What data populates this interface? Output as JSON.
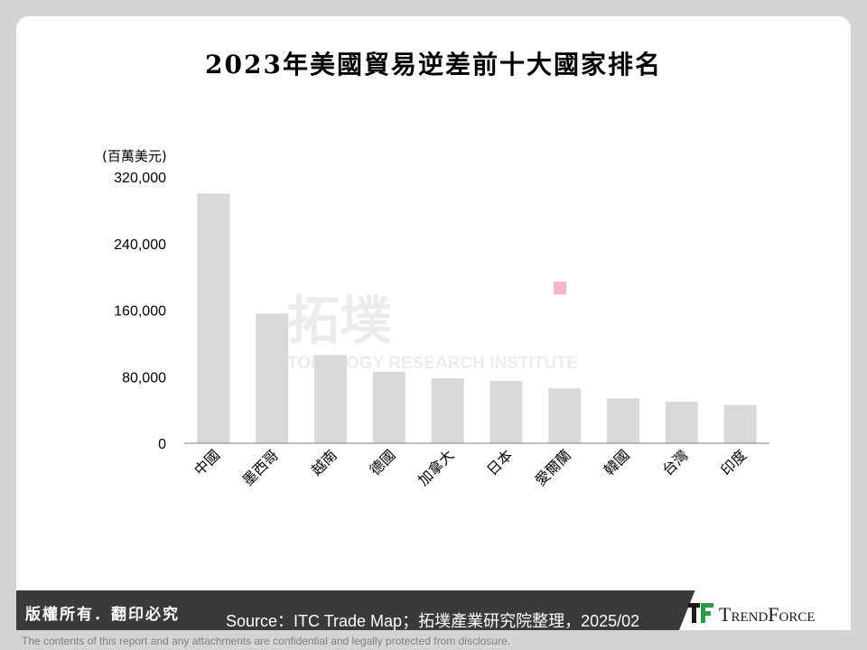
{
  "footer": {
    "rights": "版權所有．翻印必究",
    "source": "Source：ITC Trade Map；拓墣產業研究院整理，2025/02",
    "brand": "TrendForce",
    "disclaimer": "The contents of this report and any attachments are confidential and legally protected from disclosure."
  },
  "watermark": {
    "name": "拓墣",
    "latin": "TOPOLOGY RESEARCH INSTITUTE"
  },
  "colors": {
    "bar": "#d9d9d9",
    "accent": "#f4b8cc",
    "footer": "#3a3a3a"
  },
  "chart_data": {
    "type": "bar",
    "title": "2023年美國貿易逆差前十大國家排名",
    "ylabel": "(百萬美元)",
    "ylim": [
      0,
      320000
    ],
    "yticks": [
      0,
      80000,
      160000,
      240000,
      320000
    ],
    "ytick_labels": [
      "0",
      "80,000",
      "160,000",
      "240,000",
      "320,000"
    ],
    "categories": [
      "中國",
      "墨西哥",
      "越南",
      "德國",
      "加拿大",
      "日本",
      "愛爾蘭",
      "韓國",
      "台灣",
      "印度"
    ],
    "values": [
      300000,
      156000,
      106000,
      86000,
      78000,
      75000,
      66000,
      54000,
      50000,
      46000
    ],
    "grid": false,
    "legend": "none"
  }
}
